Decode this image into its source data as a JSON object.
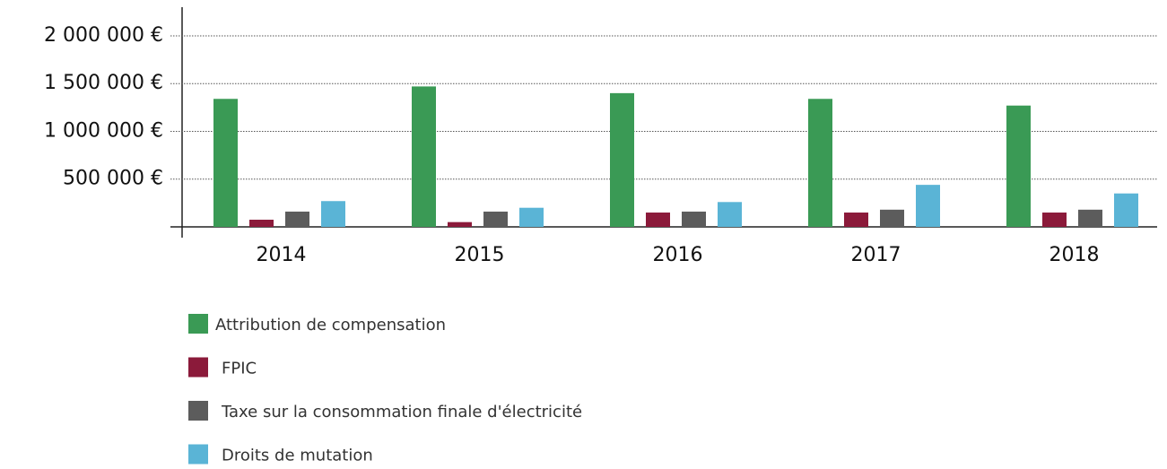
{
  "chart_data": {
    "type": "bar",
    "categories": [
      "2014",
      "2015",
      "2016",
      "2017",
      "2018"
    ],
    "series": [
      {
        "name": "Attribution de compensation",
        "color": "#3a9a55",
        "values": [
          1340000,
          1470000,
          1400000,
          1340000,
          1270000
        ]
      },
      {
        "name": "FPIC",
        "color": "#8b1a3a",
        "values": [
          75000,
          50000,
          150000,
          150000,
          150000
        ]
      },
      {
        "name": "Taxe sur la consommation finale d'électricité",
        "color": "#5c5c5c",
        "values": [
          160000,
          160000,
          160000,
          180000,
          180000
        ]
      },
      {
        "name": "Droits de mutation",
        "color": "#5ab4d6",
        "values": [
          270000,
          200000,
          260000,
          440000,
          350000
        ]
      }
    ],
    "ylim": [
      0,
      2300000
    ],
    "yticks": [
      {
        "value": 500000,
        "label": "500 000 €"
      },
      {
        "value": 1000000,
        "label": "1 000 000 €"
      },
      {
        "value": 1500000,
        "label": "1 500 000 €"
      },
      {
        "value": 2000000,
        "label": "2 000 000 €"
      }
    ],
    "grid": true
  }
}
